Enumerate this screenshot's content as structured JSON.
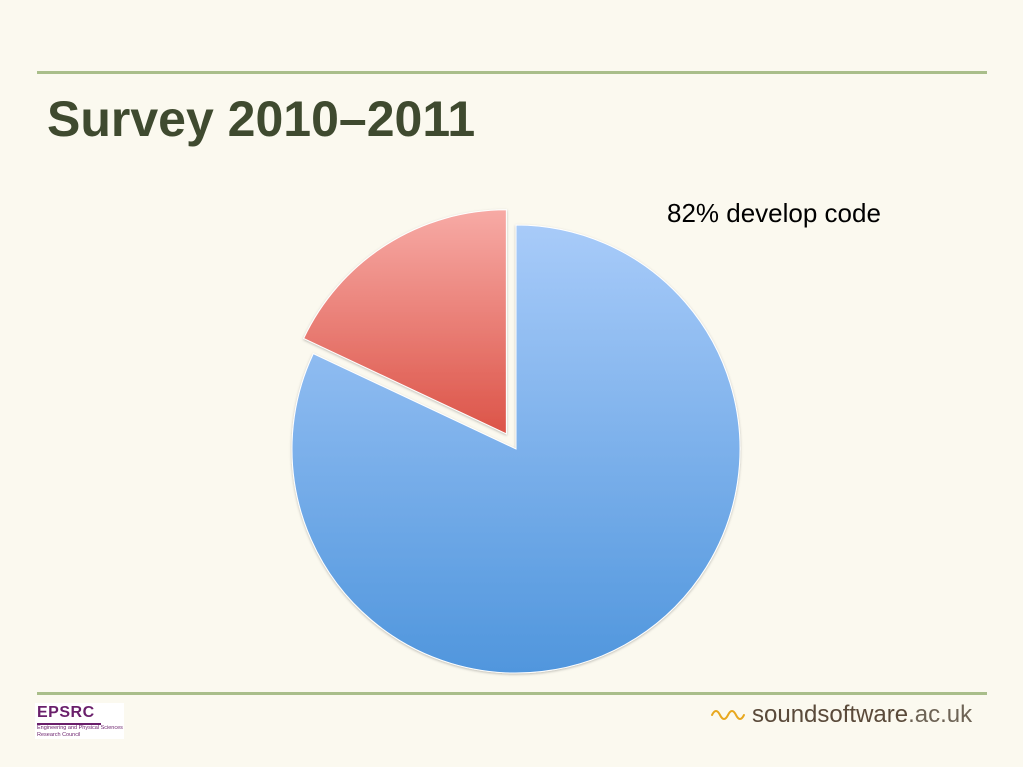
{
  "slide": {
    "title": "Survey 2010–2011"
  },
  "chart_data": {
    "type": "pie",
    "title": "",
    "slices": [
      {
        "label": "82% develop code",
        "value": 82,
        "color": "#5f9de0",
        "exploded": false
      },
      {
        "label": "",
        "value": 18,
        "color": "#e06259",
        "exploded": true
      }
    ],
    "annotations": [
      "82% develop code"
    ]
  },
  "footer": {
    "left_logo": {
      "name": "EPSRC",
      "line1": "Engineering and Physical Sciences",
      "line2": "Research Council"
    },
    "right_logo": {
      "strong_text": "soundsoftware",
      "light_text": ".ac.uk",
      "accent_color": "#e8a81f"
    }
  }
}
